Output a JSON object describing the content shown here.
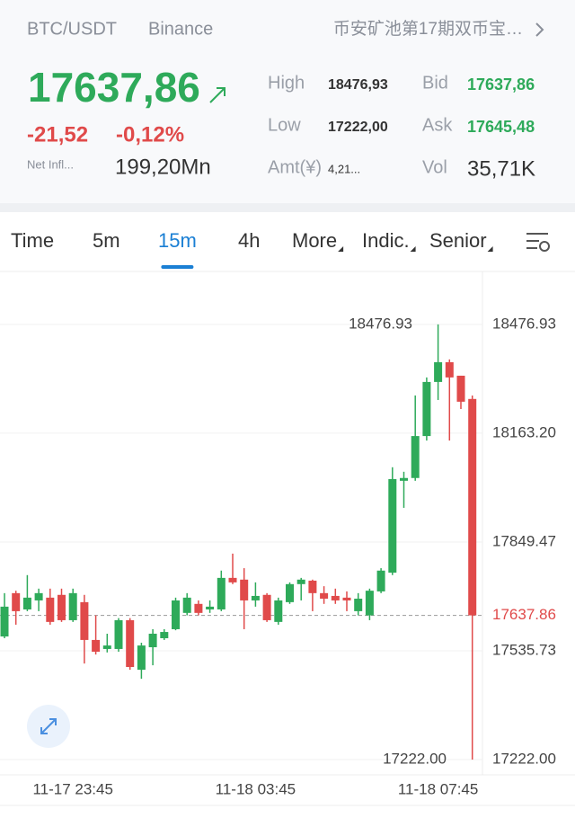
{
  "header": {
    "pair": "BTC/USDT",
    "exchange": "Binance",
    "promo": "币安矿池第17期双币宝…"
  },
  "ticker": {
    "price": "17637,86",
    "change": "-21,52",
    "change_pct": "-0,12%",
    "net_inflow_label": "Net Infl...",
    "net_inflow": "199,20Mn",
    "stats": [
      {
        "label": "High",
        "value": "18476,93"
      },
      {
        "label": "Low",
        "value": "17222,00"
      },
      {
        "label": "Amt(¥)",
        "value": "4,21..."
      },
      {
        "label": "Bid",
        "value": "17637,86"
      },
      {
        "label": "Ask",
        "value": "17645,48"
      },
      {
        "label": "Vol",
        "value": "35,71K"
      }
    ]
  },
  "tabs": [
    {
      "label": "Time",
      "active": false
    },
    {
      "label": "5m",
      "active": false
    },
    {
      "label": "15m",
      "active": true
    },
    {
      "label": "4h",
      "active": false
    },
    {
      "label": "More",
      "active": false,
      "dropdown": true
    },
    {
      "label": "Indic.",
      "active": false,
      "dropdown": true
    },
    {
      "label": "Senior",
      "active": false,
      "dropdown": true
    }
  ],
  "chart_data": {
    "type": "candlestick",
    "categories": [
      null,
      null,
      null,
      null,
      null,
      null,
      "11-17 23:45",
      null,
      null,
      null,
      null,
      null,
      null,
      null,
      null,
      null,
      null,
      null,
      null,
      null,
      null,
      null,
      "11-18 03:45",
      null,
      null,
      null,
      null,
      null,
      null,
      null,
      null,
      null,
      null,
      null,
      null,
      null,
      null,
      null,
      "11-18 07:45",
      null,
      null,
      null
    ],
    "open": [
      17577,
      17702,
      17655,
      17681,
      17689,
      17697,
      17624,
      17676,
      17567,
      17541,
      17541,
      17624,
      17481,
      17546,
      17572,
      17598,
      17645,
      17671,
      17655,
      17655,
      17746,
      17741,
      17681,
      17697,
      17619,
      17676,
      17728,
      17738,
      17702,
      17694,
      17689,
      17650,
      17638,
      17707,
      17761,
      18026,
      18034,
      18155,
      18311,
      18368,
      18329,
      18262
    ],
    "high": [
      17702,
      17709,
      17754,
      17715,
      17715,
      17715,
      17715,
      17697,
      17638,
      17585,
      17630,
      17630,
      17559,
      17598,
      17598,
      17689,
      17702,
      17681,
      17681,
      17767,
      17816,
      17774,
      17733,
      17702,
      17689,
      17733,
      17746,
      17741,
      17722,
      17715,
      17707,
      17702,
      17715,
      17774,
      18065,
      18052,
      18272,
      18324,
      18476.93,
      18376,
      18329,
      18272
    ],
    "low": [
      17572,
      17611,
      17650,
      17650,
      17611,
      17619,
      17619,
      17499,
      17525,
      17531,
      17533,
      17481,
      17455,
      17494,
      17567,
      17595,
      17638,
      17638,
      17645,
      17650,
      17728,
      17598,
      17663,
      17619,
      17611,
      17671,
      17681,
      17650,
      17671,
      17671,
      17650,
      17638,
      17624,
      17702,
      17754,
      17948,
      18026,
      18142,
      18259,
      18142,
      18233,
      17222.0
    ],
    "close": [
      17663,
      17650,
      17689,
      17702,
      17619,
      17624,
      17702,
      17567,
      17533,
      17551,
      17624,
      17489,
      17551,
      17585,
      17590,
      17681,
      17689,
      17645,
      17663,
      17746,
      17733,
      17681,
      17694,
      17624,
      17681,
      17728,
      17741,
      17702,
      17686,
      17681,
      17681,
      17686,
      17709,
      17767,
      18031,
      18034,
      18155,
      18311,
      18368,
      18324,
      18254,
      17637.86
    ],
    "up_color": "#2eaa5a",
    "down_color": "#e04a4a",
    "ylim": [
      17178,
      18627
    ],
    "yticks": [
      18476.93,
      {
        "value": 18163.2,
        "label": "18163.20"
      },
      17849.47,
      17535.73,
      {
        "value": 17222,
        "label": "17222.00"
      }
    ],
    "grid": true,
    "last_price": {
      "value": 17637.86,
      "label": "17637.86"
    },
    "high_label": {
      "value": 18476.93,
      "label": "18476.93"
    },
    "low_label": {
      "value": 17222,
      "label": "17222.00"
    }
  }
}
